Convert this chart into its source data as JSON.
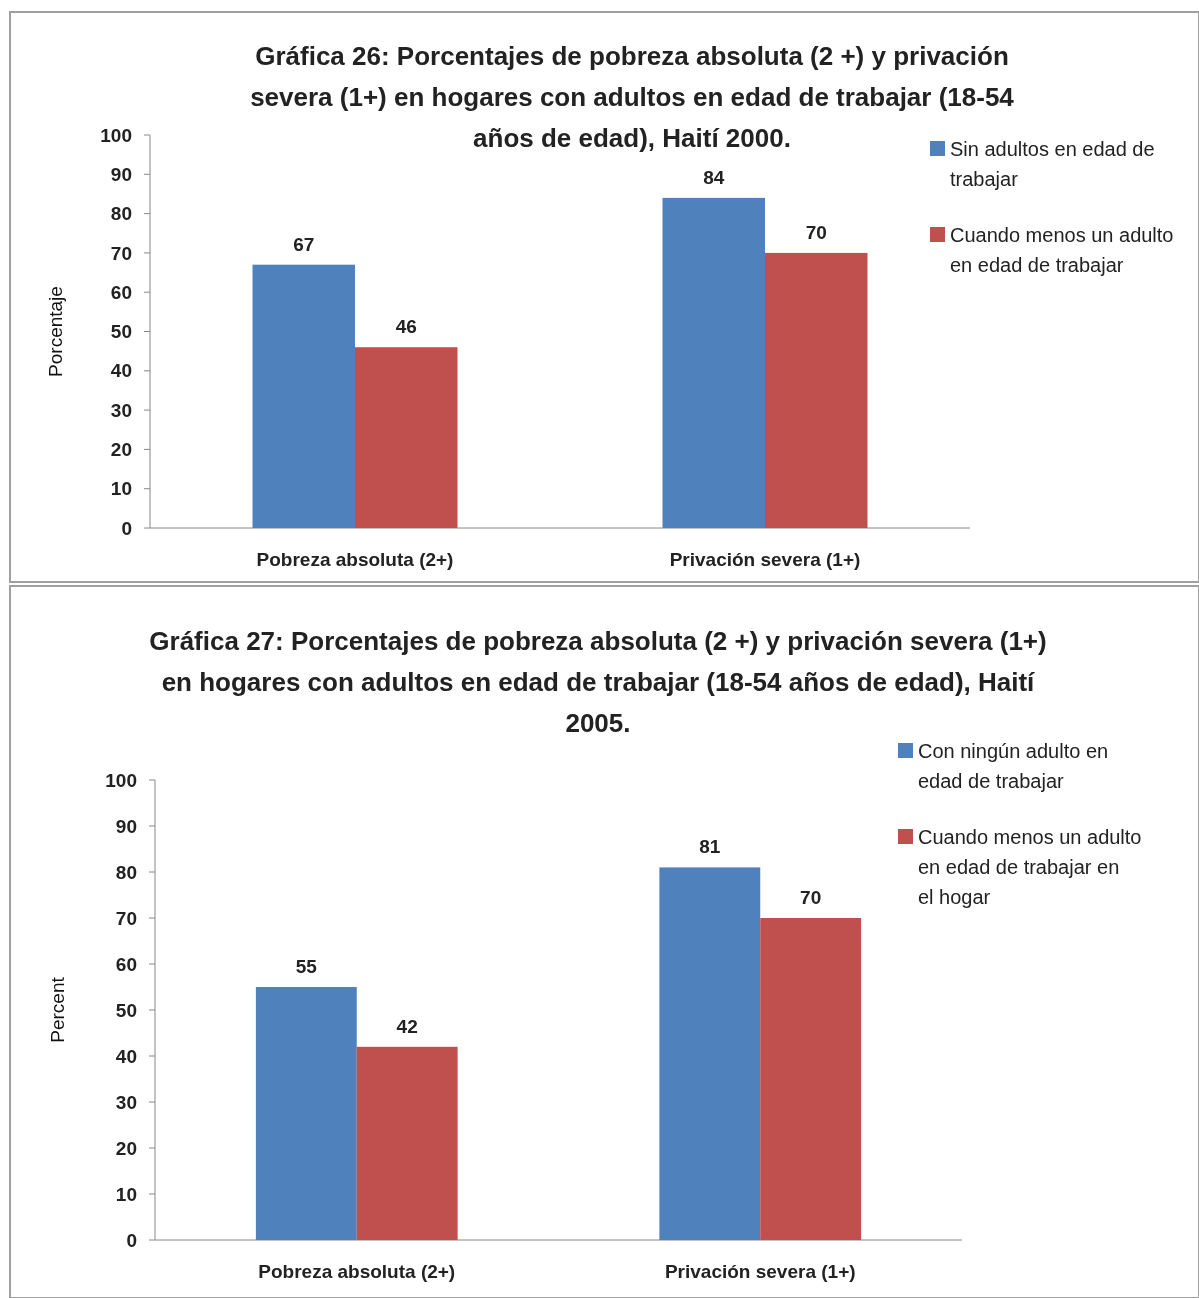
{
  "chart_data": [
    {
      "type": "bar",
      "title": "Gráfica 26: Porcentajes de pobreza absoluta (2 +) y privación severa (1+) en hogares con adultos en edad de trabajar (18-54 años de edad), Haití 2000.",
      "ylabel": "Porcentaje",
      "categories": [
        "Pobreza absoluta (2+)",
        "Privación severa (1+)"
      ],
      "series": [
        {
          "name": "Sin adultos en edad de trabajar",
          "color": "#4f81bd",
          "values": [
            67,
            84
          ]
        },
        {
          "name": "Cuando menos un adulto en edad de trabajar",
          "color": "#c0504d",
          "values": [
            46,
            70
          ]
        }
      ],
      "ylim": [
        0,
        100
      ],
      "yticks": [
        0,
        10,
        20,
        30,
        40,
        50,
        60,
        70,
        80,
        90,
        100
      ],
      "data_labels": true,
      "legend": "right",
      "grid": false
    },
    {
      "type": "bar",
      "title": "Gráfica 27: Porcentajes de pobreza absoluta (2 +) y privación severa (1+) en hogares con adultos en edad de trabajar (18-54 años de edad), Haití 2005.",
      "ylabel": "Percent",
      "categories": [
        "Pobreza absoluta (2+)",
        "Privación severa (1+)"
      ],
      "series": [
        {
          "name": "Con ningún adulto en edad de trabajar",
          "color": "#4f81bd",
          "values": [
            55,
            81
          ]
        },
        {
          "name": "Cuando menos un adulto en edad de trabajar en el hogar",
          "color": "#c0504d",
          "values": [
            42,
            70
          ]
        }
      ],
      "ylim": [
        0,
        100
      ],
      "yticks": [
        0,
        10,
        20,
        30,
        40,
        50,
        60,
        70,
        80,
        90,
        100
      ],
      "data_labels": true,
      "legend": "right",
      "grid": false
    }
  ]
}
